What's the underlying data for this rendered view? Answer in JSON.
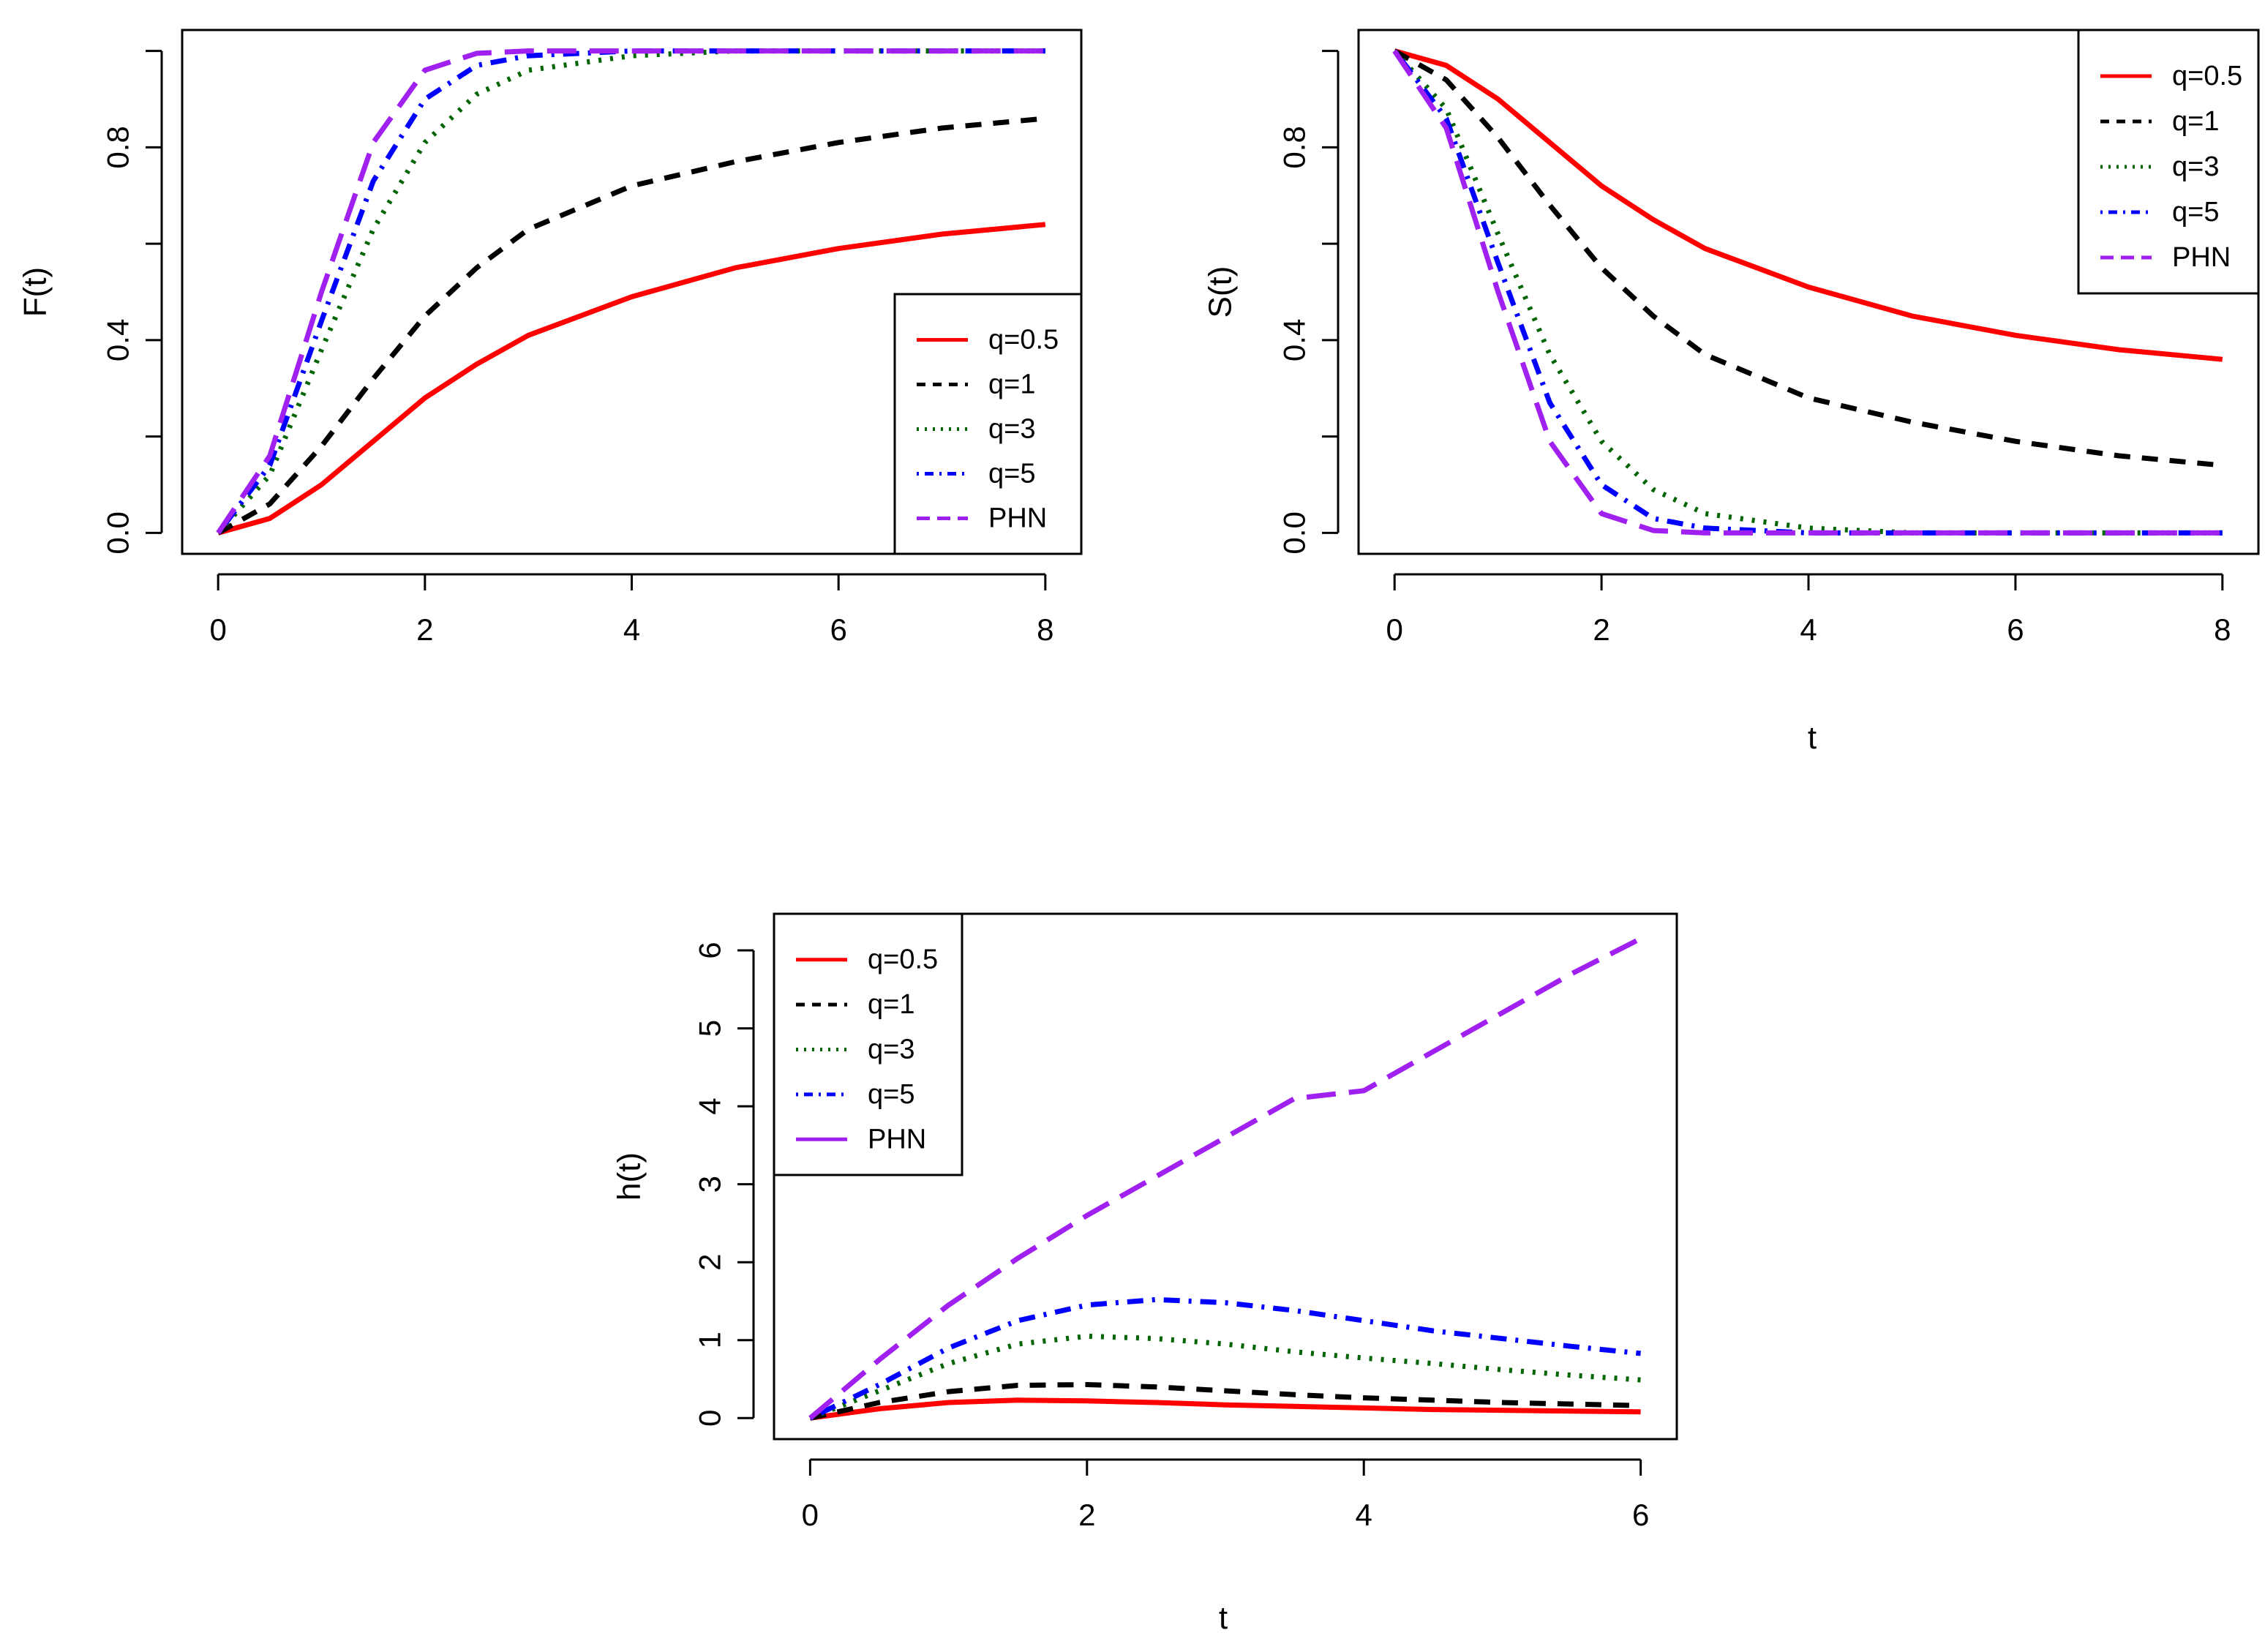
{
  "figure": {
    "background": "#ffffff",
    "axis_color": "#000000"
  },
  "styles": {
    "q05": {
      "color": "#ff0000",
      "dash": "solid",
      "width": 7
    },
    "q1": {
      "color": "#000000",
      "dash": "dashed",
      "width": 7
    },
    "q3": {
      "color": "#006400",
      "dash": "dotted",
      "width": 7
    },
    "q5": {
      "color": "#0000ff",
      "dash": "dotdash",
      "width": 7
    },
    "phn": {
      "color": "#a020f0",
      "dash": "longdash",
      "width": 7
    }
  },
  "chart_data": [
    {
      "id": "cdf",
      "type": "line",
      "title": "",
      "xlabel": "",
      "ylabel": "F(t)",
      "xlim": [
        0,
        8
      ],
      "ylim": [
        0,
        1
      ],
      "xticks": [
        0,
        2,
        4,
        6,
        8
      ],
      "yticks": [
        0.0,
        0.2,
        0.4,
        0.6,
        0.8,
        1.0
      ],
      "ytick_labels": [
        "0.0",
        "",
        "0.4",
        "",
        "0.8",
        ""
      ],
      "legend_position": "bottom-right",
      "legend": [
        "q=0.5",
        "q=1",
        "q=3",
        "q=5",
        "PHN"
      ],
      "x": [
        0,
        0.5,
        1,
        1.5,
        2,
        2.5,
        3,
        4,
        5,
        6,
        7,
        8
      ],
      "series": [
        {
          "name": "q=0.5",
          "style": "q05",
          "values": [
            0,
            0.03,
            0.1,
            0.19,
            0.28,
            0.35,
            0.41,
            0.49,
            0.55,
            0.59,
            0.62,
            0.64
          ]
        },
        {
          "name": "q=1",
          "style": "q1",
          "values": [
            0,
            0.06,
            0.18,
            0.32,
            0.45,
            0.55,
            0.63,
            0.72,
            0.77,
            0.81,
            0.84,
            0.86
          ]
        },
        {
          "name": "q=3",
          "style": "q3",
          "values": [
            0,
            0.12,
            0.38,
            0.63,
            0.81,
            0.91,
            0.96,
            0.99,
            1.0,
            1.0,
            1.0,
            1.0
          ]
        },
        {
          "name": "q=5",
          "style": "q5",
          "values": [
            0,
            0.14,
            0.44,
            0.73,
            0.9,
            0.97,
            0.99,
            1.0,
            1.0,
            1.0,
            1.0,
            1.0
          ]
        },
        {
          "name": "PHN",
          "style": "phn",
          "values": [
            0,
            0.16,
            0.5,
            0.81,
            0.96,
            0.995,
            1.0,
            1.0,
            1.0,
            1.0,
            1.0,
            1.0
          ]
        }
      ]
    },
    {
      "id": "survival",
      "type": "line",
      "title": "",
      "xlabel": "t",
      "ylabel": "S(t)",
      "xlim": [
        0,
        8
      ],
      "ylim": [
        0,
        1
      ],
      "xticks": [
        0,
        2,
        4,
        6,
        8
      ],
      "yticks": [
        0.0,
        0.2,
        0.4,
        0.6,
        0.8,
        1.0
      ],
      "ytick_labels": [
        "0.0",
        "",
        "0.4",
        "",
        "0.8",
        ""
      ],
      "legend_position": "top-right",
      "legend": [
        "q=0.5",
        "q=1",
        "q=3",
        "q=5",
        "PHN"
      ],
      "x": [
        0,
        0.5,
        1,
        1.5,
        2,
        2.5,
        3,
        4,
        5,
        6,
        7,
        8
      ],
      "series": [
        {
          "name": "q=0.5",
          "style": "q05",
          "values": [
            1,
            0.97,
            0.9,
            0.81,
            0.72,
            0.65,
            0.59,
            0.51,
            0.45,
            0.41,
            0.38,
            0.36
          ]
        },
        {
          "name": "q=1",
          "style": "q1",
          "values": [
            1,
            0.94,
            0.82,
            0.68,
            0.55,
            0.45,
            0.37,
            0.28,
            0.23,
            0.19,
            0.16,
            0.14
          ]
        },
        {
          "name": "q=3",
          "style": "q3",
          "values": [
            1,
            0.88,
            0.62,
            0.37,
            0.19,
            0.09,
            0.04,
            0.01,
            0.0,
            0.0,
            0.0,
            0.0
          ]
        },
        {
          "name": "q=5",
          "style": "q5",
          "values": [
            1,
            0.86,
            0.56,
            0.27,
            0.1,
            0.03,
            0.01,
            0.0,
            0.0,
            0.0,
            0.0,
            0.0
          ]
        },
        {
          "name": "PHN",
          "style": "phn",
          "values": [
            1,
            0.84,
            0.5,
            0.19,
            0.04,
            0.005,
            0.0,
            0.0,
            0.0,
            0.0,
            0.0,
            0.0
          ]
        }
      ]
    },
    {
      "id": "hazard",
      "type": "line",
      "title": "",
      "xlabel": "t",
      "ylabel": "h(t)",
      "xlim": [
        0,
        6
      ],
      "ylim": [
        0,
        6.2
      ],
      "xticks": [
        0,
        2,
        4,
        6
      ],
      "yticks": [
        0,
        1,
        2,
        3,
        4,
        5,
        6
      ],
      "ytick_labels": [
        "0",
        "1",
        "2",
        "3",
        "4",
        "5",
        "6"
      ],
      "legend_position": "top-left",
      "legend": [
        "q=0.5",
        "q=1",
        "q=3",
        "q=5",
        "PHN"
      ],
      "x": [
        0,
        0.5,
        1,
        1.5,
        2,
        2.5,
        3,
        3.5,
        4,
        4.5,
        5,
        5.5,
        6
      ],
      "series": [
        {
          "name": "q=0.5",
          "style": "q05",
          "values": [
            0,
            0.12,
            0.2,
            0.23,
            0.22,
            0.2,
            0.17,
            0.15,
            0.13,
            0.11,
            0.1,
            0.09,
            0.08
          ]
        },
        {
          "name": "q=1",
          "style": "q1",
          "values": [
            0,
            0.2,
            0.34,
            0.42,
            0.43,
            0.4,
            0.35,
            0.3,
            0.26,
            0.23,
            0.2,
            0.18,
            0.16
          ]
        },
        {
          "name": "q=3",
          "style": "q3",
          "values": [
            0,
            0.35,
            0.7,
            0.95,
            1.05,
            1.02,
            0.95,
            0.85,
            0.77,
            0.7,
            0.62,
            0.55,
            0.49
          ]
        },
        {
          "name": "q=5",
          "style": "q5",
          "values": [
            0,
            0.43,
            0.9,
            1.25,
            1.45,
            1.52,
            1.48,
            1.38,
            1.25,
            1.12,
            1.02,
            0.92,
            0.83
          ]
        },
        {
          "name": "PHN",
          "style": "phn",
          "values": [
            0,
            0.75,
            1.45,
            2.05,
            2.6,
            3.1,
            3.6,
            4.1,
            4.2,
            4.7,
            5.2,
            5.7,
            6.15
          ]
        }
      ]
    }
  ]
}
